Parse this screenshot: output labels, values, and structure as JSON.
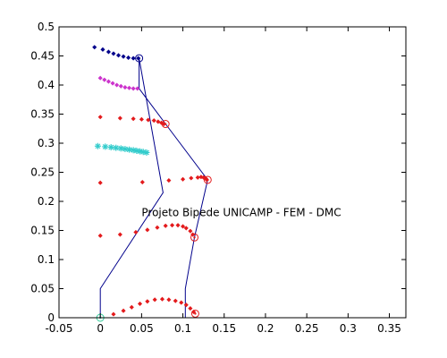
{
  "chart_data": {
    "type": "scatter",
    "title": "",
    "xlabel": "",
    "ylabel": "",
    "xlim": [
      -0.05,
      0.37
    ],
    "ylim": [
      0,
      0.5
    ],
    "x_ticks": [
      "-0.05",
      "0",
      "0.05",
      "0.1",
      "0.15",
      "0.2",
      "0.25",
      "0.3",
      "0.35"
    ],
    "x_tick_values": [
      -0.05,
      0,
      0.05,
      0.1,
      0.15,
      0.2,
      0.25,
      0.3,
      0.35
    ],
    "y_ticks": [
      "0",
      "0.05",
      "0.1",
      "0.15",
      "0.2",
      "0.25",
      "0.3",
      "0.35",
      "0.4",
      "0.45",
      "0.5"
    ],
    "y_tick_values": [
      0,
      0.05,
      0.1,
      0.15,
      0.2,
      0.25,
      0.3,
      0.35,
      0.4,
      0.45,
      0.5
    ],
    "grid": false,
    "annotation": {
      "text": "Projeto Bipede UNICAMP - FEM - DMC",
      "x": 0.05,
      "y": 0.175
    },
    "colors": {
      "axes": "#000000",
      "link": "#00008b",
      "trajectory_navy": "#00008b",
      "trajectory_magenta": "#cc33cc",
      "trajectory_red": "#e31a1c",
      "trajectory_cyan": "#33cccc",
      "joint_ground": "#2ecc9a"
    },
    "series": [
      {
        "marker": "dot",
        "color_key": "trajectory_navy",
        "x": [
          -0.007,
          0.003,
          0.01,
          0.016,
          0.022,
          0.028,
          0.034,
          0.04,
          0.046
        ],
        "y": [
          0.465,
          0.461,
          0.457,
          0.454,
          0.451,
          0.449,
          0.447,
          0.446,
          0.446
        ]
      },
      {
        "marker": "dot",
        "color_key": "trajectory_magenta",
        "x": [
          0.0,
          0.005,
          0.01,
          0.015,
          0.02,
          0.025,
          0.03,
          0.035,
          0.04,
          0.045
        ],
        "y": [
          0.412,
          0.409,
          0.406,
          0.403,
          0.4,
          0.398,
          0.396,
          0.395,
          0.394,
          0.394
        ]
      },
      {
        "marker": "dot",
        "color_key": "trajectory_red",
        "x": [
          0.0,
          0.024,
          0.04,
          0.05,
          0.058,
          0.065,
          0.07,
          0.074,
          0.077
        ],
        "y": [
          0.345,
          0.343,
          0.342,
          0.341,
          0.34,
          0.339,
          0.337,
          0.335,
          0.333
        ]
      },
      {
        "marker": "star",
        "color_key": "trajectory_cyan",
        "x": [
          -0.003,
          0.006,
          0.013,
          0.019,
          0.025,
          0.03,
          0.035,
          0.04,
          0.044,
          0.048,
          0.052,
          0.056
        ],
        "y": [
          0.295,
          0.294,
          0.293,
          0.292,
          0.291,
          0.29,
          0.289,
          0.288,
          0.287,
          0.286,
          0.285,
          0.284
        ]
      },
      {
        "marker": "dot",
        "color_key": "trajectory_red",
        "x": [
          0.0,
          0.051,
          0.083,
          0.1,
          0.11,
          0.118,
          0.122,
          0.125,
          0.127,
          0.128,
          0.129
        ],
        "y": [
          0.232,
          0.233,
          0.236,
          0.238,
          0.24,
          0.241,
          0.242,
          0.241,
          0.24,
          0.239,
          0.237
        ]
      },
      {
        "marker": "dot",
        "color_key": "trajectory_red",
        "x": [
          0.0,
          0.024,
          0.043,
          0.057,
          0.069,
          0.079,
          0.087,
          0.094,
          0.1,
          0.104,
          0.109,
          0.112
        ],
        "y": [
          0.141,
          0.143,
          0.147,
          0.151,
          0.155,
          0.158,
          0.159,
          0.159,
          0.157,
          0.154,
          0.149,
          0.143
        ]
      },
      {
        "marker": "dot",
        "color_key": "trajectory_red",
        "x": [
          0.016,
          0.028,
          0.038,
          0.048,
          0.057,
          0.066,
          0.075,
          0.083,
          0.091,
          0.098,
          0.104,
          0.109,
          0.113
        ],
        "y": [
          0.006,
          0.012,
          0.018,
          0.024,
          0.028,
          0.031,
          0.032,
          0.031,
          0.029,
          0.026,
          0.022,
          0.016,
          0.01
        ]
      }
    ],
    "links": [
      {
        "x": [
          0.0,
          0.0,
          0.076,
          0.047,
          0.047,
          0.079,
          0.13,
          0.114,
          0.103,
          0.103
        ],
        "y": [
          0.0,
          0.05,
          0.215,
          0.446,
          0.394,
          0.333,
          0.237,
          0.138,
          0.05,
          0.0
        ]
      }
    ],
    "joints": [
      {
        "x": 0.0,
        "y": 0.0,
        "color_key": "joint_ground"
      },
      {
        "x": 0.047,
        "y": 0.446,
        "color_key": "trajectory_navy"
      },
      {
        "x": 0.079,
        "y": 0.333,
        "color_key": "trajectory_red"
      },
      {
        "x": 0.13,
        "y": 0.237,
        "color_key": "trajectory_red"
      },
      {
        "x": 0.114,
        "y": 0.138,
        "color_key": "trajectory_red"
      },
      {
        "x": 0.115,
        "y": 0.007,
        "color_key": "trajectory_red"
      }
    ]
  }
}
